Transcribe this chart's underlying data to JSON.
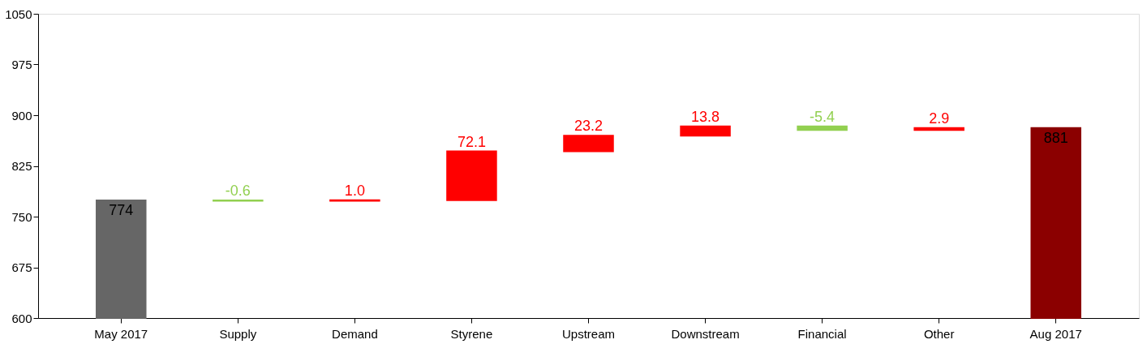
{
  "chart_data": {
    "type": "bar",
    "categories": [
      "May 2017",
      "Supply",
      "Demand",
      "Styrene",
      "Upstream",
      "Downstream",
      "Financial",
      "Other",
      "Aug 2017"
    ],
    "base": [
      600,
      774,
      773.4,
      774.4,
      846.5,
      869.7,
      883.5,
      878.1,
      600
    ],
    "values": [
      174,
      -0.6,
      1.0,
      72.1,
      23.2,
      13.8,
      -5.4,
      2.9,
      281
    ],
    "value_labels": [
      "774",
      "-0.6",
      "1.0",
      "72.1",
      "23.2",
      "13.8",
      "-5.4",
      "2.9",
      "881"
    ],
    "colors": [
      "#666666",
      "#92d050",
      "#ff0000",
      "#ff0000",
      "#ff0000",
      "#ff0000",
      "#92d050",
      "#ff0000",
      "#8b0000"
    ],
    "ylim": [
      600,
      1050
    ],
    "yticks": [
      600,
      675,
      750,
      825,
      900,
      975,
      1050
    ],
    "grid": false
  }
}
